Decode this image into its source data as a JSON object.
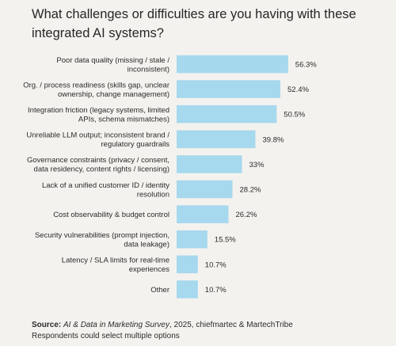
{
  "title": "What challenges or difficulties are you having with these integrated AI systems?",
  "chart_data": {
    "type": "bar",
    "orientation": "horizontal",
    "categories": [
      [
        "Poor data quality (missing / stale /",
        "inconsistent)"
      ],
      [
        "Org. / process readiness (skills gap, unclear",
        "ownership, change management)"
      ],
      [
        "Integration friction (legacy systems, limited",
        "APIs, schema mismatches)"
      ],
      [
        "Unreliable LLM output; inconsistent brand /",
        "regulatory guardrails"
      ],
      [
        "Governance constraints (privacy / consent,",
        "data residency, content rights / licensing)"
      ],
      [
        "Lack of a unified customer ID / identity",
        "resolution"
      ],
      [
        "Cost observability & budget control"
      ],
      [
        "Security vulnerabilities (prompt injection,",
        "data leakage)"
      ],
      [
        "Latency / SLA limits for real-time",
        "experiences"
      ],
      [
        "Other"
      ]
    ],
    "values": [
      56.3,
      52.4,
      50.5,
      39.8,
      33,
      28.2,
      26.2,
      15.5,
      10.7,
      10.7
    ],
    "value_labels": [
      "56.3%",
      "52.4%",
      "50.5%",
      "39.8%",
      "33%",
      "28.2%",
      "26.2%",
      "15.5%",
      "10.7%",
      "10.7%"
    ],
    "bar_color": "#a6d8ee",
    "grid": false
  },
  "source": {
    "label": "Source:",
    "survey": "AI & Data in Marketing Survey",
    "rest": ", 2025, chiefmartec & MartechTribe",
    "note": "Respondents could select multiple options"
  }
}
